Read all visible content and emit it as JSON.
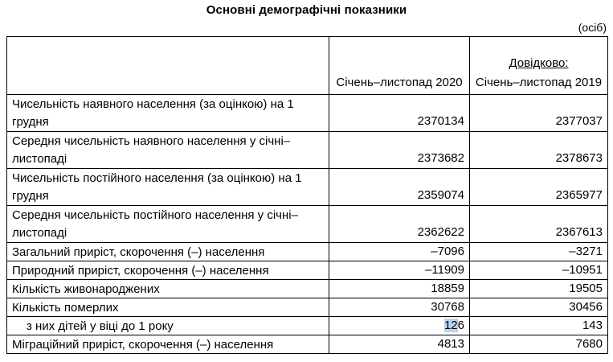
{
  "title": "Основні демографічні показники",
  "unit": "(осіб)",
  "header": {
    "col_2020": "Січень–листопад 2020",
    "col_2019_ref": "Довідково:",
    "col_2019": "Січень–листопад 2019"
  },
  "rows": [
    {
      "label": "Чисельність наявного населення (за оцінкою) на 1 грудня",
      "v2020": "2370134",
      "v2019": "2377037"
    },
    {
      "label": "Середня чисельність наявного населення у січні–листопаді",
      "v2020": "2373682",
      "v2019": "2378673"
    },
    {
      "label": "Чисельність постійного населення (за оцінкою) на 1 грудня",
      "v2020": "2359074",
      "v2019": "2365977"
    },
    {
      "label": "Середня чисельність постійного населення у січні–листопаді",
      "v2020": "2362622",
      "v2019": "2367613"
    },
    {
      "label": "Загальний приріст, скорочення (–) населення",
      "v2020": "–7096",
      "v2019": "–3271"
    },
    {
      "label": "Природний приріст, скорочення (–) населення",
      "v2020": "–11909",
      "v2019": "–10951"
    },
    {
      "label": "Кількість живонароджених",
      "v2020": "18859",
      "v2019": "19505"
    },
    {
      "label": "Кількість померлих",
      "v2020": "30768",
      "v2019": "30456"
    },
    {
      "label": "з них дітей у віці до 1 року",
      "v2020_prefix": "12",
      "v2020_suffix": "6",
      "v2019": "143"
    },
    {
      "label": "Міграційний приріст, скорочення (–) населення",
      "v2020": "4813",
      "v2019": "7680"
    }
  ]
}
